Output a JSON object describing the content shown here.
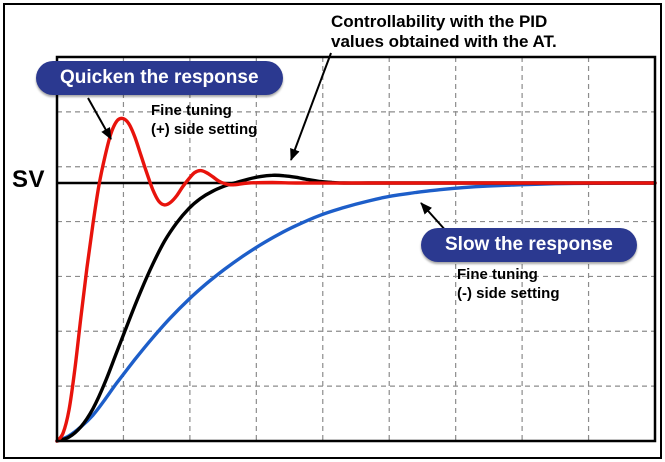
{
  "labels": {
    "sv": "SV",
    "quicken_pill": "Quicken the response",
    "slow_pill": "Slow the response",
    "controllability_note": "Controllability with the PID\nvalues obtained with the AT.",
    "fine_tuning_plus": "Fine tuning\n(+) side setting",
    "fine_tuning_minus": "Fine tuning\n(-) side setting"
  },
  "colors": {
    "pill_background": "#2b3990",
    "pill_text": "#ffffff",
    "quick_curve": "#e8130c",
    "at_curve": "#000000",
    "slow_curve": "#1d5ec9",
    "grid": "#8c8c8c",
    "sv_line": "#000000",
    "plot_border": "#000000"
  },
  "chart_data": {
    "type": "line",
    "title": "",
    "xlabel": "",
    "ylabel": "",
    "x_range": [
      0,
      100
    ],
    "sv_level": 1.0,
    "grid": {
      "cols": 9,
      "rows": 7,
      "style": "dashed"
    },
    "legend": "none",
    "annotations": [
      "Quicken the response",
      "Fine tuning (+) side setting",
      "Controllability with the PID values obtained with the AT.",
      "SV",
      "Slow the response",
      "Fine tuning (-) side setting"
    ],
    "series": [
      {
        "name": "quickened-response-fine-tuning-plus",
        "color": "#e8130c",
        "points": [
          [
            0,
            0
          ],
          [
            1,
            0.03
          ],
          [
            2,
            0.12
          ],
          [
            3,
            0.28
          ],
          [
            4,
            0.48
          ],
          [
            5,
            0.67
          ],
          [
            6,
            0.84
          ],
          [
            7,
            0.99
          ],
          [
            8,
            1.1
          ],
          [
            9,
            1.19
          ],
          [
            10,
            1.24
          ],
          [
            11,
            1.25
          ],
          [
            12,
            1.23
          ],
          [
            13,
            1.18
          ],
          [
            14,
            1.11
          ],
          [
            15,
            1.04
          ],
          [
            16,
            0.975
          ],
          [
            17,
            0.93
          ],
          [
            18,
            0.915
          ],
          [
            19,
            0.925
          ],
          [
            20,
            0.95
          ],
          [
            21,
            0.985
          ],
          [
            22,
            1.015
          ],
          [
            23,
            1.04
          ],
          [
            24,
            1.048
          ],
          [
            25,
            1.04
          ],
          [
            26,
            1.025
          ],
          [
            27,
            1.008
          ],
          [
            28,
            0.998
          ],
          [
            29,
            0.993
          ],
          [
            30,
            0.994
          ],
          [
            32,
            1
          ],
          [
            36,
            1.002
          ],
          [
            40,
            1
          ],
          [
            50,
            1
          ],
          [
            60,
            1
          ],
          [
            70,
            1
          ],
          [
            80,
            1
          ],
          [
            90,
            1
          ],
          [
            100,
            1
          ]
        ]
      },
      {
        "name": "at-pid-response",
        "color": "#000000",
        "points": [
          [
            0,
            0
          ],
          [
            2,
            0.015
          ],
          [
            4,
            0.055
          ],
          [
            6,
            0.125
          ],
          [
            8,
            0.225
          ],
          [
            10,
            0.345
          ],
          [
            12,
            0.465
          ],
          [
            14,
            0.58
          ],
          [
            16,
            0.685
          ],
          [
            18,
            0.775
          ],
          [
            20,
            0.845
          ],
          [
            22,
            0.9
          ],
          [
            24,
            0.94
          ],
          [
            26,
            0.968
          ],
          [
            28,
            0.988
          ],
          [
            30,
            1.002
          ],
          [
            32,
            1.015
          ],
          [
            34,
            1.025
          ],
          [
            36,
            1.03
          ],
          [
            38,
            1.028
          ],
          [
            40,
            1.022
          ],
          [
            42,
            1.013
          ],
          [
            44,
            1.006
          ],
          [
            46,
            1.002
          ],
          [
            48,
            1
          ],
          [
            52,
            1
          ],
          [
            56,
            1
          ],
          [
            60,
            1
          ],
          [
            70,
            1
          ],
          [
            80,
            1
          ],
          [
            90,
            1
          ],
          [
            100,
            1
          ]
        ]
      },
      {
        "name": "slowed-response-fine-tuning-minus",
        "color": "#1d5ec9",
        "points": [
          [
            0,
            0
          ],
          [
            2,
            0.02
          ],
          [
            4,
            0.055
          ],
          [
            6,
            0.1
          ],
          [
            8,
            0.16
          ],
          [
            10,
            0.225
          ],
          [
            13,
            0.315
          ],
          [
            16,
            0.4
          ],
          [
            19,
            0.478
          ],
          [
            22,
            0.548
          ],
          [
            25,
            0.61
          ],
          [
            28,
            0.665
          ],
          [
            31,
            0.715
          ],
          [
            34,
            0.76
          ],
          [
            37,
            0.8
          ],
          [
            40,
            0.835
          ],
          [
            44,
            0.875
          ],
          [
            48,
            0.905
          ],
          [
            52,
            0.93
          ],
          [
            56,
            0.95
          ],
          [
            60,
            0.963
          ],
          [
            64,
            0.974
          ],
          [
            68,
            0.982
          ],
          [
            72,
            0.988
          ],
          [
            76,
            0.992
          ],
          [
            80,
            0.995
          ],
          [
            85,
            0.998
          ],
          [
            90,
            0.999
          ],
          [
            95,
            1
          ],
          [
            100,
            1
          ]
        ]
      }
    ]
  }
}
